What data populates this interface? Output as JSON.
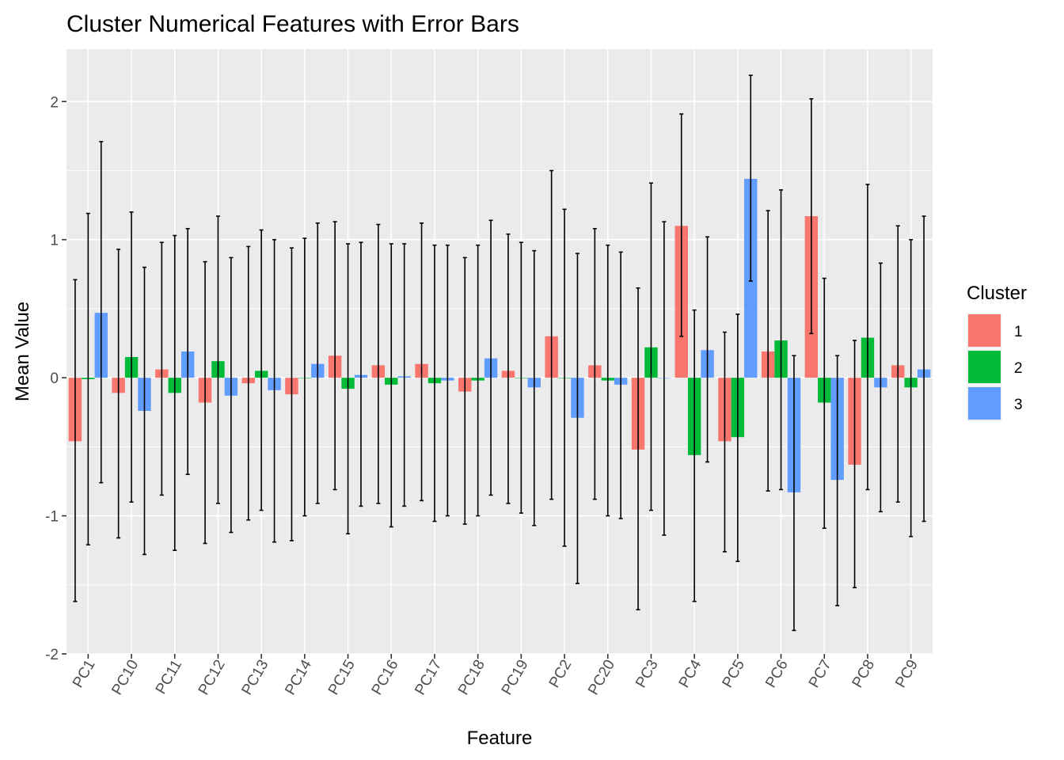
{
  "chart_data": {
    "type": "bar",
    "title": "Cluster Numerical Features with Error Bars",
    "xlabel": "Feature",
    "ylabel": "Mean Value",
    "ylim": [
      -2.0,
      2.38
    ],
    "yticks": [
      -2,
      -1,
      0,
      1,
      2
    ],
    "grid": true,
    "legend": {
      "title": "Cluster",
      "placement": "right"
    },
    "categories": [
      "PC1",
      "PC10",
      "PC11",
      "PC12",
      "PC13",
      "PC14",
      "PC15",
      "PC16",
      "PC17",
      "PC18",
      "PC19",
      "PC2",
      "PC20",
      "PC3",
      "PC4",
      "PC5",
      "PC6",
      "PC7",
      "PC8",
      "PC9"
    ],
    "series": [
      {
        "name": "1",
        "color": "#F8766D",
        "values": [
          -0.46,
          -0.11,
          0.06,
          -0.18,
          -0.04,
          -0.12,
          0.16,
          0.09,
          0.1,
          -0.1,
          0.05,
          0.3,
          0.09,
          -0.52,
          1.1,
          -0.46,
          0.19,
          1.17,
          -0.63,
          0.09
        ],
        "error_low": [
          -1.62,
          -1.16,
          -0.85,
          -1.2,
          -1.03,
          -1.18,
          -0.81,
          -0.91,
          -0.89,
          -1.06,
          -0.91,
          -0.88,
          -0.88,
          -1.68,
          0.3,
          -1.26,
          -0.82,
          0.32,
          -1.52,
          -0.9
        ],
        "error_high": [
          0.71,
          0.93,
          0.98,
          0.84,
          0.95,
          0.94,
          1.13,
          1.11,
          1.12,
          0.87,
          1.04,
          1.5,
          1.08,
          0.65,
          1.91,
          0.33,
          1.21,
          2.02,
          0.27,
          1.1
        ]
      },
      {
        "name": "2",
        "color": "#00BA38",
        "values": [
          -0.01,
          0.15,
          -0.11,
          0.12,
          0.05,
          0.0,
          -0.08,
          -0.05,
          -0.04,
          -0.02,
          0.0,
          0.0,
          -0.02,
          0.22,
          -0.56,
          -0.43,
          0.27,
          -0.18,
          0.29,
          -0.07
        ],
        "error_low": [
          -1.21,
          -0.9,
          -1.25,
          -0.91,
          -0.96,
          -1.0,
          -1.13,
          -1.08,
          -1.04,
          -1.0,
          -0.98,
          -1.22,
          -1.0,
          -0.96,
          -1.62,
          -1.33,
          -0.81,
          -1.09,
          -0.81,
          -1.15
        ],
        "error_high": [
          1.19,
          1.2,
          1.03,
          1.17,
          1.07,
          1.01,
          0.97,
          0.97,
          0.96,
          0.96,
          0.98,
          1.22,
          0.96,
          1.41,
          0.49,
          0.46,
          1.36,
          0.72,
          1.4,
          1.0
        ]
      },
      {
        "name": "3",
        "color": "#619CFF",
        "values": [
          0.47,
          -0.24,
          0.19,
          -0.13,
          -0.09,
          0.1,
          0.02,
          0.01,
          -0.02,
          0.14,
          -0.07,
          -0.29,
          -0.05,
          0.0,
          0.2,
          1.44,
          -0.83,
          -0.74,
          -0.07,
          0.06
        ],
        "error_low": [
          -0.76,
          -1.28,
          -0.7,
          -1.12,
          -1.19,
          -0.91,
          -0.93,
          -0.93,
          -1.0,
          -0.85,
          -1.07,
          -1.49,
          -1.02,
          -1.14,
          -0.61,
          0.7,
          -1.83,
          -1.65,
          -0.97,
          -1.04
        ],
        "error_high": [
          1.71,
          0.8,
          1.08,
          0.87,
          1.0,
          1.12,
          0.98,
          0.97,
          0.96,
          1.14,
          0.92,
          0.9,
          0.91,
          1.13,
          1.02,
          2.19,
          0.16,
          0.16,
          0.83,
          1.17
        ]
      }
    ]
  }
}
